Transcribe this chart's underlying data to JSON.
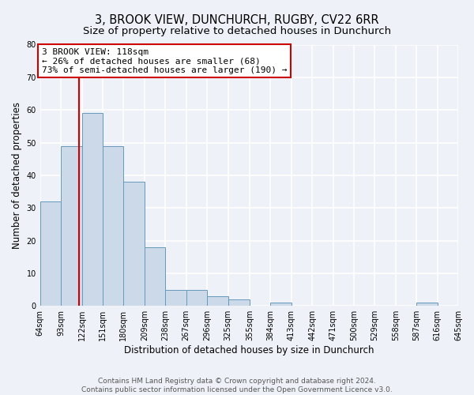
{
  "title": "3, BROOK VIEW, DUNCHURCH, RUGBY, CV22 6RR",
  "subtitle": "Size of property relative to detached houses in Dunchurch",
  "xlabel": "Distribution of detached houses by size in Dunchurch",
  "ylabel": "Number of detached properties",
  "bin_edges": [
    64,
    93,
    122,
    151,
    180,
    209,
    238,
    267,
    296,
    325,
    355,
    384,
    413,
    442,
    471,
    500,
    529,
    558,
    587,
    616,
    645
  ],
  "bar_heights": [
    32,
    49,
    59,
    49,
    38,
    18,
    5,
    5,
    3,
    2,
    0,
    1,
    0,
    0,
    0,
    0,
    0,
    0,
    1,
    0
  ],
  "bar_facecolor": "#ccd9e8",
  "bar_edgecolor": "#6699bb",
  "background_color": "#eef2f8",
  "grid_color": "#ffffff",
  "property_line_x": 118,
  "property_line_color": "#cc0000",
  "annotation_text": "3 BROOK VIEW: 118sqm\n← 26% of detached houses are smaller (68)\n73% of semi-detached houses are larger (190) →",
  "annotation_box_facecolor": "#ffffff",
  "annotation_box_edgecolor": "#cc0000",
  "ylim": [
    0,
    80
  ],
  "yticks": [
    0,
    10,
    20,
    30,
    40,
    50,
    60,
    70,
    80
  ],
  "tick_labels": [
    "64sqm",
    "93sqm",
    "122sqm",
    "151sqm",
    "180sqm",
    "209sqm",
    "238sqm",
    "267sqm",
    "296sqm",
    "325sqm",
    "355sqm",
    "384sqm",
    "413sqm",
    "442sqm",
    "471sqm",
    "500sqm",
    "529sqm",
    "558sqm",
    "587sqm",
    "616sqm",
    "645sqm"
  ],
  "footer_text": "Contains HM Land Registry data © Crown copyright and database right 2024.\nContains public sector information licensed under the Open Government Licence v3.0.",
  "title_fontsize": 10.5,
  "subtitle_fontsize": 9.5,
  "axis_label_fontsize": 8.5,
  "tick_fontsize": 7,
  "annotation_fontsize": 8,
  "footer_fontsize": 6.5
}
